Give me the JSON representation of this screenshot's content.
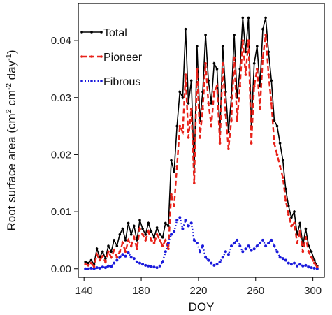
{
  "chart_data": {
    "type": "line",
    "title": "",
    "xlabel": "DOY",
    "ylabel": "Root surface area (cm",
    "ylabel_parts": [
      "Root surface area (cm",
      "2",
      " cm",
      "-2",
      " day",
      "-1",
      ")"
    ],
    "xlim": [
      136,
      308
    ],
    "ylim": [
      -0.0015,
      0.0465
    ],
    "xticks": [
      140,
      180,
      220,
      260,
      300
    ],
    "xtick_labels": [
      "140",
      "180",
      "220",
      "260",
      "300"
    ],
    "yticks": [
      0.0,
      0.01,
      0.02,
      0.03,
      0.04
    ],
    "ytick_labels": [
      "0.00",
      "0.01",
      "0.02",
      "0.03",
      "0.04"
    ],
    "grid": false,
    "legend_position": "top-left",
    "x": [
      141,
      143,
      145,
      147,
      149,
      151,
      153,
      155,
      157,
      159,
      161,
      163,
      165,
      167,
      169,
      171,
      173,
      175,
      177,
      179,
      181,
      183,
      185,
      187,
      189,
      191,
      193,
      195,
      197,
      199,
      201,
      203,
      205,
      207,
      209,
      211,
      213,
      215,
      217,
      219,
      221,
      223,
      225,
      227,
      229,
      231,
      233,
      235,
      237,
      239,
      241,
      243,
      245,
      247,
      249,
      251,
      253,
      255,
      257,
      259,
      261,
      263,
      265,
      267,
      269,
      271,
      273,
      275,
      277,
      279,
      281,
      283,
      285,
      287,
      289,
      291,
      293,
      295,
      297,
      299,
      301,
      303
    ],
    "series": [
      {
        "name": "Total",
        "color": "#000000",
        "style": "solid",
        "values": [
          0.0012,
          0.001,
          0.0015,
          0.0008,
          0.0035,
          0.002,
          0.003,
          0.0018,
          0.004,
          0.003,
          0.005,
          0.004,
          0.006,
          0.007,
          0.005,
          0.008,
          0.006,
          0.0075,
          0.005,
          0.0085,
          0.007,
          0.006,
          0.008,
          0.0065,
          0.0055,
          0.0072,
          0.006,
          0.0055,
          0.008,
          0.0075,
          0.019,
          0.017,
          0.025,
          0.031,
          0.03,
          0.042,
          0.029,
          0.033,
          0.017,
          0.039,
          0.026,
          0.031,
          0.041,
          0.033,
          0.029,
          0.036,
          0.035,
          0.024,
          0.039,
          0.031,
          0.024,
          0.03,
          0.041,
          0.03,
          0.035,
          0.044,
          0.038,
          0.044,
          0.025,
          0.036,
          0.039,
          0.032,
          0.042,
          0.044,
          0.038,
          0.033,
          0.026,
          0.025,
          0.022,
          0.019,
          0.014,
          0.011,
          0.009,
          0.01,
          0.006,
          0.008,
          0.004,
          0.007,
          0.004,
          0.003,
          0.0015,
          0.0005
        ]
      },
      {
        "name": "Pioneer",
        "color": "#e8221a",
        "style": "dashed",
        "values": [
          0.0008,
          0.0006,
          0.001,
          0.0004,
          0.0025,
          0.0015,
          0.0022,
          0.0012,
          0.003,
          0.002,
          0.0032,
          0.002,
          0.003,
          0.0045,
          0.003,
          0.005,
          0.004,
          0.0055,
          0.0035,
          0.007,
          0.006,
          0.005,
          0.0065,
          0.005,
          0.0045,
          0.006,
          0.005,
          0.004,
          0.005,
          0.0035,
          0.013,
          0.011,
          0.018,
          0.025,
          0.024,
          0.034,
          0.023,
          0.028,
          0.015,
          0.035,
          0.023,
          0.028,
          0.036,
          0.029,
          0.025,
          0.031,
          0.032,
          0.022,
          0.036,
          0.027,
          0.021,
          0.026,
          0.037,
          0.026,
          0.032,
          0.04,
          0.034,
          0.04,
          0.022,
          0.032,
          0.035,
          0.028,
          0.037,
          0.041,
          0.034,
          0.029,
          0.022,
          0.02,
          0.018,
          0.016,
          0.012,
          0.0095,
          0.0075,
          0.008,
          0.0045,
          0.0065,
          0.003,
          0.0055,
          0.003,
          0.002,
          0.001,
          0.0003
        ]
      },
      {
        "name": "Fibrous",
        "color": "#1a1adc",
        "style": "dotted",
        "values": [
          0.0,
          0.0,
          0.0001,
          0.0,
          0.0002,
          0.0001,
          0.0003,
          0.0002,
          0.0005,
          0.0004,
          0.001,
          0.0015,
          0.002,
          0.0025,
          0.0022,
          0.0028,
          0.002,
          0.0018,
          0.0012,
          0.001,
          0.0008,
          0.0006,
          0.0005,
          0.0004,
          0.0003,
          0.0002,
          0.0005,
          0.0012,
          0.003,
          0.0045,
          0.006,
          0.0065,
          0.0085,
          0.009,
          0.007,
          0.0085,
          0.0075,
          0.008,
          0.005,
          0.0045,
          0.003,
          0.004,
          0.002,
          0.0015,
          0.001,
          0.0006,
          0.0008,
          0.0012,
          0.002,
          0.003,
          0.0025,
          0.004,
          0.0045,
          0.005,
          0.004,
          0.003,
          0.0035,
          0.004,
          0.0032,
          0.0035,
          0.004,
          0.0045,
          0.005,
          0.004,
          0.0045,
          0.005,
          0.004,
          0.003,
          0.002,
          0.0018,
          0.0015,
          0.001,
          0.0008,
          0.001,
          0.0005,
          0.0008,
          0.0005,
          0.0006,
          0.0003,
          0.0002,
          0.0001,
          0.0
        ]
      }
    ]
  }
}
